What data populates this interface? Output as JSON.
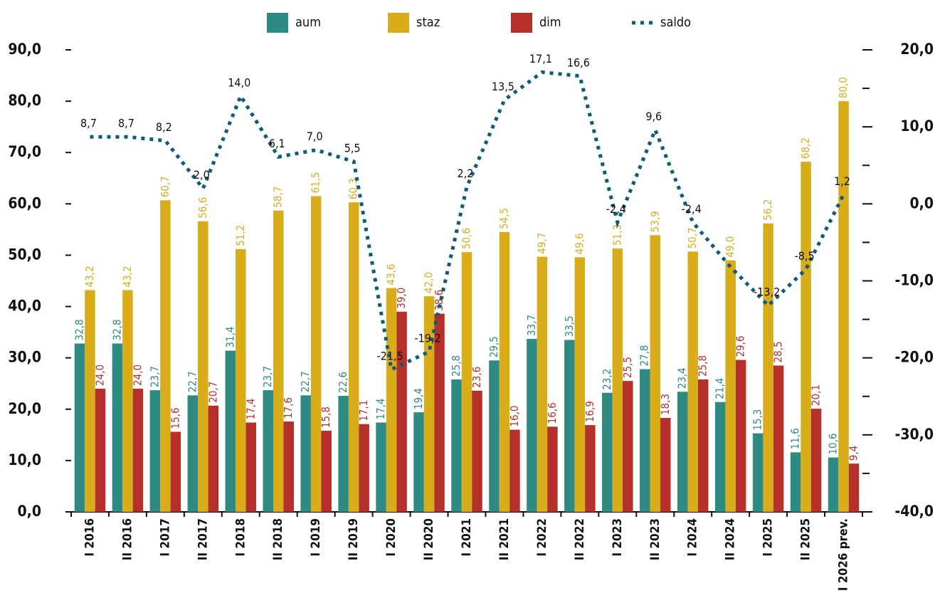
{
  "chart_data": {
    "type": "bar_line",
    "categories": [
      "I 2016",
      "II 2016",
      "I 2017",
      "II 2017",
      "I 2018",
      "II 2018",
      "I 2019",
      "II 2019",
      "I 2020",
      "II 2020",
      "I 2021",
      "II 2021",
      "I 2022",
      "II 2022",
      "I 2023",
      "II 2023",
      "I 2024",
      "II 2024",
      "I 2025",
      "II 2025",
      "I 2026 prev."
    ],
    "series": [
      {
        "name": "aum",
        "color": "#2e8b84",
        "values": [
          32.8,
          32.8,
          23.7,
          22.7,
          31.4,
          23.7,
          22.7,
          22.6,
          17.4,
          19.4,
          25.8,
          29.5,
          33.7,
          33.5,
          23.2,
          27.8,
          23.4,
          21.4,
          15.3,
          11.6,
          10.6
        ],
        "value_labels": [
          "32,8",
          "32,8",
          "23,7",
          "22,7",
          "31,4",
          "23,7",
          "22,7",
          "22,6",
          "17,4",
          "19,4",
          "25,8",
          "29,5",
          "33,7",
          "33,5",
          "23,2",
          "27,8",
          "23,4",
          "21,4",
          "15,3",
          "11,6",
          "10,6"
        ]
      },
      {
        "name": "staz",
        "color": "#d9ac1a",
        "values": [
          43.2,
          43.2,
          60.7,
          56.6,
          51.2,
          58.7,
          61.5,
          60.3,
          43.6,
          42.0,
          50.6,
          54.5,
          49.7,
          49.6,
          51.3,
          53.9,
          50.7,
          49.0,
          56.2,
          68.2,
          80.0
        ],
        "value_labels": [
          "43,2",
          "43,2",
          "60,7",
          "56,6",
          "51,2",
          "58,7",
          "61,5",
          "60,3",
          "43,6",
          "42,0",
          "50,6",
          "54,5",
          "49,7",
          "49,6",
          "51,3",
          "53,9",
          "50,7",
          "49,0",
          "56,2",
          "68,2",
          "80,0"
        ]
      },
      {
        "name": "dim",
        "color": "#b5302a",
        "values": [
          24.0,
          24.0,
          15.6,
          20.7,
          17.4,
          17.6,
          15.8,
          17.1,
          39.0,
          38.6,
          23.6,
          16.0,
          16.6,
          16.9,
          25.5,
          18.3,
          25.8,
          29.6,
          28.5,
          20.1,
          9.4
        ],
        "value_labels": [
          "24,0",
          "24,0",
          "15,6",
          "20,7",
          "17,4",
          "17,6",
          "15,8",
          "17,1",
          "39,0",
          "38,6",
          "23,6",
          "16,0",
          "16,6",
          "16,9",
          "25,5",
          "18,3",
          "25,8",
          "29,6",
          "28,5",
          "20,1",
          "9,4"
        ]
      },
      {
        "name": "saldo",
        "color": "#0e5c75",
        "axis": "y2",
        "style": "dotted",
        "values": [
          8.7,
          8.7,
          8.2,
          2.0,
          14.0,
          6.1,
          7.0,
          5.5,
          -21.5,
          -19.2,
          2.2,
          13.5,
          17.1,
          16.6,
          -2.4,
          9.6,
          -2.4,
          -8.2,
          -13.2,
          -8.5,
          1.2
        ],
        "value_labels": [
          "8,7",
          "8,7",
          "8,2",
          "2,0",
          "14,0",
          "6,1",
          "7,0",
          "5,5",
          "-21,5",
          "-19,2",
          "2,2",
          "13,5",
          "17,1",
          "16,6",
          "-2,4",
          "9,6",
          "-2,4",
          null,
          "-13,2",
          "-8,5",
          "1,2"
        ]
      }
    ],
    "ylim": [
      0,
      90
    ],
    "yticks": [
      {
        "value": 0,
        "label": "0,0"
      },
      {
        "value": 10,
        "label": "10,0"
      },
      {
        "value": 20,
        "label": "20,0"
      },
      {
        "value": 30,
        "label": "30,0"
      },
      {
        "value": 40,
        "label": "40,0"
      },
      {
        "value": 50,
        "label": "50,0"
      },
      {
        "value": 60,
        "label": "60,0"
      },
      {
        "value": 70,
        "label": "70,0"
      },
      {
        "value": 80,
        "label": "80,0"
      },
      {
        "value": 90,
        "label": "90,0"
      }
    ],
    "y2lim": [
      -40,
      20
    ],
    "y2ticks": [
      {
        "value": -40,
        "label": "-40,0"
      },
      {
        "value": -30,
        "label": "-30,0"
      },
      {
        "value": -20,
        "label": "-20,0"
      },
      {
        "value": -10,
        "label": "-10,0"
      },
      {
        "value": 0,
        "label": "0,0"
      },
      {
        "value": 10,
        "label": "10,0"
      },
      {
        "value": 20,
        "label": "20,0"
      }
    ],
    "y2minorticks": [
      -35,
      -25,
      -15,
      -5,
      5,
      15
    ],
    "legend": "top",
    "grid": false
  }
}
